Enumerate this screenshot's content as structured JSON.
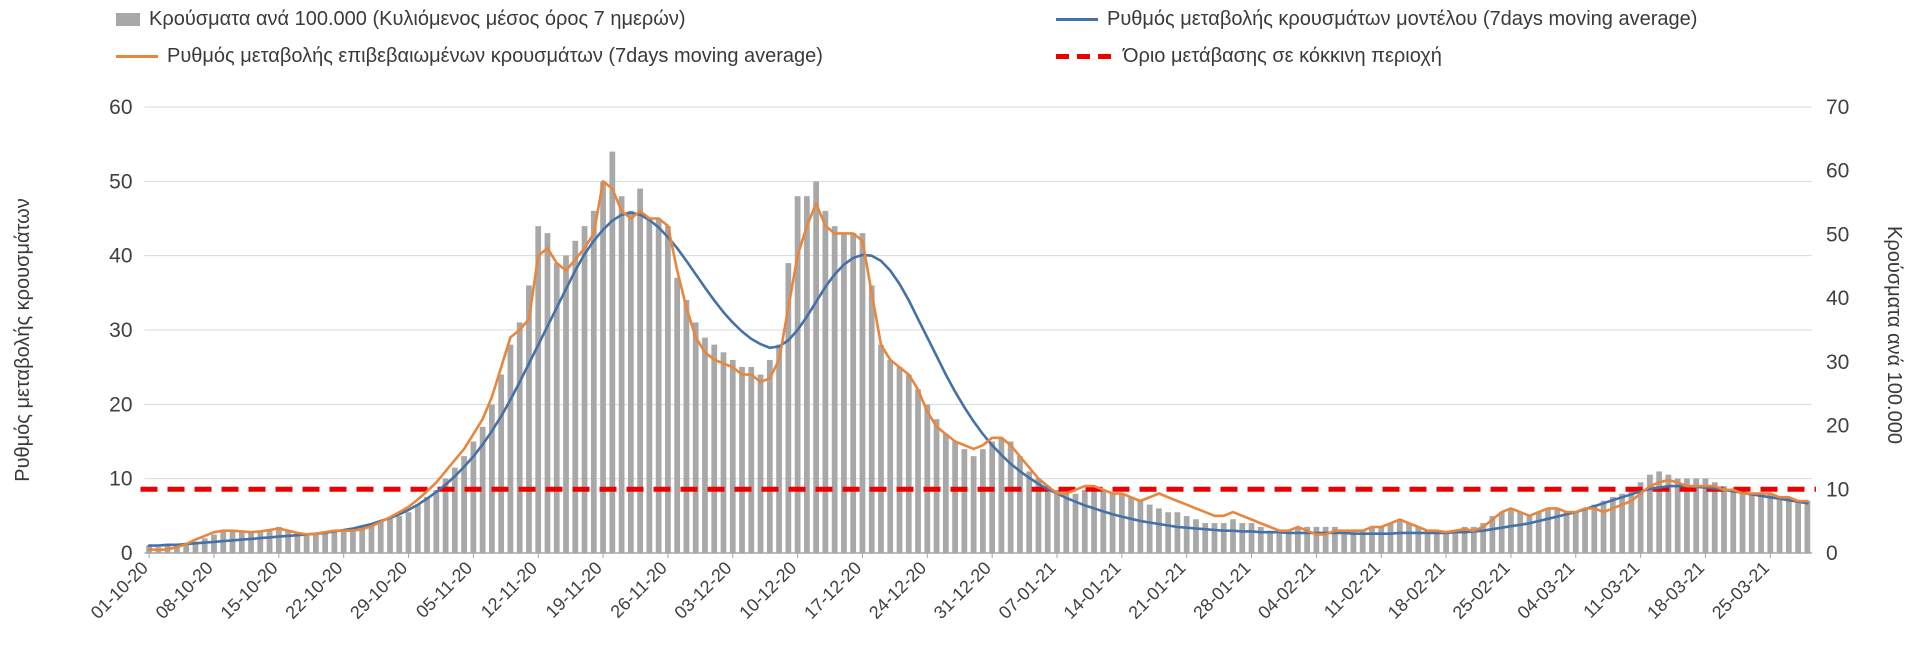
{
  "colors": {
    "text": "#404040",
    "legend_text": "#3a3a3a",
    "grid": "#D9D9D9",
    "axis_line": "#A6A6A6",
    "bars": "#A8A8A8",
    "model_line": "#4472A8",
    "confirmed_line": "#E8863D",
    "threshold": "#EE0000",
    "background": "#FFFFFF"
  },
  "chart_data": {
    "type": "combo-bar-line",
    "grid": true,
    "legend_position": "top",
    "left_axis": {
      "title": "Ρυθμός μεταβολής κρουσμάτων",
      "lim": [
        0,
        60
      ],
      "ticks": [
        0,
        10,
        20,
        30,
        40,
        50,
        60
      ]
    },
    "right_axis": {
      "title": "Κρούσματα ανά 100.000",
      "lim": [
        0,
        70
      ],
      "ticks": [
        0,
        10,
        20,
        30,
        40,
        50,
        60,
        70
      ]
    },
    "x_axis": {
      "points_per_series": 180,
      "ticks_every_n_points": 7,
      "tick_labels": [
        "01-10-20",
        "08-10-20",
        "15-10-20",
        "22-10-20",
        "29-10-20",
        "05-11-20",
        "12-11-20",
        "19-11-20",
        "26-11-20",
        "03-12-20",
        "10-12-20",
        "17-12-20",
        "24-12-20",
        "31-12-20",
        "07-01-21",
        "14-01-21",
        "21-01-21",
        "28-01-21",
        "04-02-21",
        "11-02-21",
        "18-02-21",
        "25-02-21",
        "04-03-21",
        "11-03-21",
        "18-03-21",
        "25-03-21"
      ]
    },
    "series": [
      {
        "key": "bar-series",
        "name": "Κρούσματα ανά 100.000 (Κυλιόμενος μέσος όρος 7 ημερών)",
        "type": "bar",
        "axis": "right",
        "color": "#A8A8A8",
        "values": [
          1.2,
          0.9,
          1.1,
          1.2,
          1.4,
          1.8,
          2.3,
          2.9,
          3.5,
          3.5,
          3.5,
          3.4,
          3.5,
          3.7,
          4.1,
          3.5,
          3.3,
          3.0,
          3.2,
          3.3,
          3.5,
          3.5,
          3.7,
          4.1,
          4.4,
          4.9,
          5.4,
          5.8,
          6.4,
          7.6,
          8.8,
          9.9,
          11.7,
          13.4,
          15.2,
          17.5,
          19.8,
          23.3,
          28.0,
          32.7,
          36.2,
          42.0,
          51.3,
          50.2,
          45.5,
          46.7,
          49.0,
          51.3,
          53.7,
          58.3,
          63.0,
          56.0,
          53.7,
          57.2,
          52.5,
          52.5,
          51.3,
          43.2,
          39.7,
          36.2,
          33.8,
          32.7,
          31.5,
          30.3,
          29.2,
          29.2,
          28.0,
          30.3,
          32.7,
          45.5,
          56.0,
          56.0,
          58.3,
          53.7,
          51.3,
          50.2,
          50.2,
          50.2,
          42.0,
          32.7,
          30.3,
          29.2,
          28.0,
          25.7,
          23.3,
          21.0,
          18.7,
          17.5,
          16.3,
          15.2,
          16.3,
          17.5,
          18.1,
          17.5,
          15.2,
          12.8,
          11.7,
          10.5,
          9.9,
          9.3,
          9.3,
          9.9,
          10.5,
          9.9,
          9.3,
          9.3,
          8.8,
          8.2,
          7.6,
          7.0,
          6.4,
          6.4,
          5.8,
          5.3,
          4.7,
          4.7,
          4.7,
          5.3,
          4.7,
          4.7,
          4.1,
          3.5,
          3.5,
          3.5,
          4.1,
          4.1,
          4.1,
          4.1,
          4.1,
          3.5,
          3.5,
          3.5,
          4.1,
          4.1,
          4.7,
          5.3,
          4.7,
          4.1,
          3.5,
          3.5,
          3.5,
          3.5,
          4.1,
          4.1,
          4.7,
          5.8,
          6.4,
          7.0,
          6.4,
          5.8,
          6.4,
          7.0,
          7.0,
          6.4,
          6.4,
          7.0,
          7.6,
          8.2,
          8.8,
          9.3,
          9.9,
          11.1,
          12.3,
          12.8,
          12.3,
          11.7,
          11.7,
          11.7,
          11.7,
          11.1,
          10.5,
          9.9,
          9.9,
          9.3,
          9.3,
          9.3,
          8.8,
          8.8,
          8.2,
          8.2
        ]
      },
      {
        "key": "confirmed-line",
        "name": "Ρυθμός μεταβολής επιβεβαιωμένων κρουσμάτων (7days moving average)",
        "type": "line",
        "axis": "left",
        "color": "#E8863D",
        "values": [
          0.5,
          0.4,
          0.5,
          0.8,
          1.2,
          1.8,
          2.3,
          2.8,
          3.0,
          3.0,
          2.9,
          2.8,
          2.9,
          3.1,
          3.3,
          3.0,
          2.7,
          2.5,
          2.6,
          2.8,
          3.0,
          3.0,
          3.0,
          3.2,
          3.6,
          4.2,
          4.8,
          5.5,
          6.2,
          7.2,
          8.3,
          9.5,
          11.0,
          12.5,
          14.0,
          16.0,
          18.0,
          21.0,
          25.0,
          29.0,
          30.0,
          31.5,
          40.0,
          41.0,
          39.0,
          38.0,
          39.5,
          41.0,
          43.0,
          50.0,
          49.0,
          46.0,
          45.0,
          46.0,
          45.0,
          45.0,
          44.0,
          38.0,
          33.0,
          29.0,
          27.0,
          26.0,
          25.5,
          25.0,
          24.0,
          24.0,
          23.0,
          23.5,
          26.0,
          33.0,
          40.0,
          44.0,
          47.0,
          44.0,
          43.0,
          43.0,
          43.0,
          42.0,
          35.0,
          28.0,
          26.0,
          25.0,
          24.0,
          22.0,
          19.0,
          17.0,
          16.0,
          15.0,
          14.5,
          14.0,
          14.5,
          15.5,
          15.5,
          14.5,
          13.0,
          11.5,
          10.0,
          9.0,
          8.0,
          8.0,
          8.5,
          9.0,
          9.0,
          8.5,
          8.0,
          8.0,
          7.5,
          7.0,
          7.5,
          8.0,
          7.5,
          7.0,
          6.5,
          6.0,
          5.5,
          5.0,
          5.0,
          5.5,
          5.0,
          4.5,
          4.0,
          3.5,
          3.0,
          3.0,
          3.5,
          3.0,
          2.5,
          2.5,
          3.0,
          3.0,
          3.0,
          3.0,
          3.5,
          3.5,
          4.0,
          4.5,
          4.0,
          3.5,
          3.0,
          3.0,
          2.8,
          3.0,
          3.2,
          3.0,
          3.5,
          4.5,
          5.5,
          6.0,
          5.5,
          5.0,
          5.5,
          6.0,
          6.0,
          5.5,
          5.5,
          6.0,
          6.0,
          5.5,
          6.0,
          6.5,
          7.0,
          8.0,
          9.0,
          9.5,
          9.8,
          9.5,
          9.0,
          9.0,
          9.0,
          9.0,
          8.5,
          8.5,
          8.0,
          8.0,
          8.0,
          8.0,
          7.5,
          7.5,
          7.0,
          7.0
        ]
      },
      {
        "key": "model-line",
        "name": "Ρυθμός μεταβολής κρουσμάτων μοντέλου (7days moving average)",
        "type": "line",
        "axis": "left",
        "color": "#4472A8",
        "values": [
          1.0,
          1.0,
          1.1,
          1.1,
          1.2,
          1.3,
          1.4,
          1.5,
          1.6,
          1.7,
          1.8,
          1.9,
          2.0,
          2.1,
          2.2,
          2.3,
          2.4,
          2.5,
          2.6,
          2.7,
          2.9,
          3.1,
          3.3,
          3.6,
          3.9,
          4.3,
          4.7,
          5.2,
          5.8,
          6.5,
          7.3,
          8.2,
          9.2,
          10.3,
          11.6,
          13.0,
          14.6,
          16.4,
          18.4,
          20.6,
          23.0,
          25.5,
          28.0,
          30.5,
          33.0,
          35.5,
          38.0,
          40.2,
          42.0,
          43.5,
          44.7,
          45.5,
          45.8,
          45.5,
          44.8,
          43.8,
          42.5,
          41.0,
          39.3,
          37.5,
          35.7,
          34.0,
          32.4,
          31.0,
          29.8,
          28.8,
          28.1,
          27.6,
          27.8,
          28.6,
          30.0,
          31.8,
          33.8,
          35.8,
          37.5,
          38.8,
          39.7,
          40.1,
          40.0,
          39.3,
          38.0,
          36.2,
          34.0,
          31.5,
          29.0,
          26.5,
          24.0,
          21.7,
          19.6,
          17.7,
          16.0,
          14.5,
          13.2,
          12.0,
          11.0,
          10.1,
          9.3,
          8.6,
          8.0,
          7.4,
          6.9,
          6.4,
          6.0,
          5.6,
          5.2,
          4.9,
          4.6,
          4.3,
          4.1,
          3.9,
          3.7,
          3.5,
          3.4,
          3.3,
          3.2,
          3.1,
          3.0,
          3.0,
          2.9,
          2.9,
          2.8,
          2.8,
          2.8,
          2.7,
          2.7,
          2.7,
          2.7,
          2.7,
          2.7,
          2.7,
          2.6,
          2.6,
          2.6,
          2.6,
          2.6,
          2.7,
          2.7,
          2.7,
          2.7,
          2.7,
          2.7,
          2.8,
          2.8,
          2.9,
          3.0,
          3.2,
          3.4,
          3.6,
          3.8,
          4.0,
          4.3,
          4.6,
          4.9,
          5.2,
          5.5,
          5.9,
          6.3,
          6.7,
          7.1,
          7.5,
          7.9,
          8.3,
          8.6,
          8.8,
          9.0,
          9.0,
          9.0,
          8.9,
          8.8,
          8.7,
          8.5,
          8.3,
          8.1,
          7.9,
          7.7,
          7.5,
          7.3,
          7.1,
          6.9,
          6.7
        ]
      },
      {
        "key": "threshold-line",
        "name": "Όριο μετάβασης σε κόκκινη περιοχή",
        "type": "threshold-line",
        "axis": "right",
        "color": "#EE0000",
        "style": "dashed",
        "value": 10
      }
    ]
  }
}
